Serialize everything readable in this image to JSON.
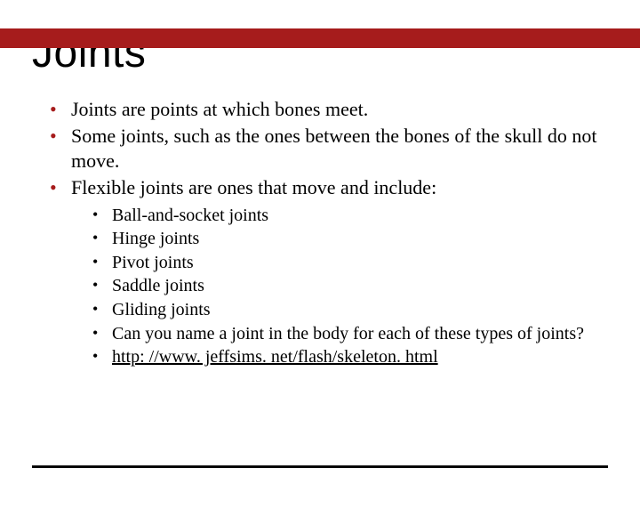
{
  "colors": {
    "accent": "#a61c1c",
    "text": "#000000",
    "background": "#ffffff"
  },
  "topbar_color": "#a61c1c",
  "rule_color": "#000000",
  "title": "Joints",
  "title_fontsize": 48,
  "body_fontsize": 22,
  "sub_fontsize": 20,
  "bullets": {
    "b0": "Joints are points at which bones meet.",
    "b1": "Some joints, such as the ones between the bones of the skull do not move.",
    "b2": "Flexible joints are ones that move and include:"
  },
  "sub_bullets": {
    "s0": "Ball-and-socket joints",
    "s1": "Hinge joints",
    "s2": "Pivot joints",
    "s3": "Saddle joints",
    "s4": "Gliding joints",
    "s5": "Can you name a joint in the body for each of these types of joints?",
    "s6": "http: //www. jeffsims. net/flash/skeleton. html"
  }
}
